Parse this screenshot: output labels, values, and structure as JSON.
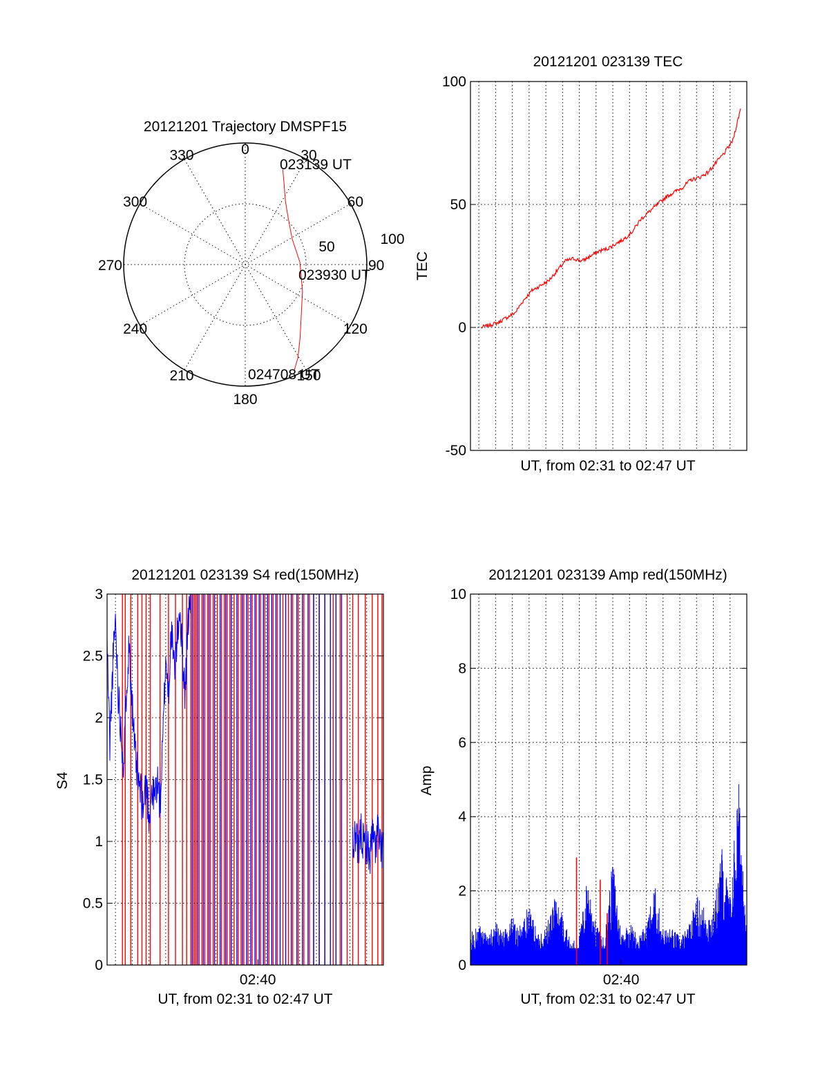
{
  "colors": {
    "red": "#ff0000",
    "blue": "#0000ff",
    "axis": "#000000"
  },
  "chart_data": [
    {
      "type": "polar",
      "title": "20121201 Trajectory DMSPF15",
      "azimuth_labels": [
        "0",
        "30",
        "60",
        "90",
        "120",
        "150",
        "180",
        "210",
        "240",
        "270",
        "300",
        "330"
      ],
      "radius_labels": [
        "50",
        "100"
      ],
      "rmax": 100,
      "trajectory": {
        "color": "#ff0000",
        "points": [
          {
            "az": 21.6,
            "zen": 84
          },
          {
            "az": 26.0,
            "zen": 73
          },
          {
            "az": 32.2,
            "zen": 62
          },
          {
            "az": 42.8,
            "zen": 52
          },
          {
            "az": 61.3,
            "zen": 44
          },
          {
            "az": 87.5,
            "zen": 45
          },
          {
            "az": 115.0,
            "zen": 52
          },
          {
            "az": 132.0,
            "zen": 62
          },
          {
            "az": 143.0,
            "zen": 75
          },
          {
            "az": 150.5,
            "zen": 88
          },
          {
            "az": 155.2,
            "zen": 96
          }
        ]
      },
      "annotations": [
        {
          "text": "023139 UT",
          "az": 21.6,
          "zen": 84
        },
        {
          "text": "023930 UT",
          "az": 87.5,
          "zen": 45
        },
        {
          "text": "024708 UT",
          "az": 155.2,
          "zen": 96
        }
      ]
    },
    {
      "type": "line",
      "title": "20121201 023139 TEC",
      "xlabel": "UT, from 02:31 to 02:47 UT",
      "ylabel": "TEC",
      "xlim": [
        "02:31:00",
        "02:47:30"
      ],
      "ylim": [
        -50,
        100
      ],
      "yticks": [
        "-50",
        "0",
        "50",
        "100"
      ],
      "xgrid": [
        "02:31:30",
        "02:32:30",
        "02:33:30",
        "02:34:30",
        "02:35:30",
        "02:36:30",
        "02:37:30",
        "02:38:30",
        "02:39:30",
        "02:40:30",
        "02:41:30",
        "02:42:30",
        "02:43:30",
        "02:44:30",
        "02:45:30",
        "02:46:30"
      ],
      "series": [
        {
          "color": "#ff0000",
          "x": [
            "02:31:39",
            "02:32:10",
            "02:32:40",
            "02:33:10",
            "02:33:40",
            "02:34:10",
            "02:34:40",
            "02:35:10",
            "02:35:40",
            "02:36:10",
            "02:36:40",
            "02:37:10",
            "02:37:40",
            "02:38:10",
            "02:38:40",
            "02:39:10",
            "02:39:40",
            "02:40:10",
            "02:40:40",
            "02:41:10",
            "02:41:40",
            "02:42:10",
            "02:42:40",
            "02:43:10",
            "02:43:40",
            "02:44:10",
            "02:44:40",
            "02:45:10",
            "02:45:40",
            "02:46:10",
            "02:46:40",
            "02:47:08"
          ],
          "values": [
            0,
            1,
            2,
            4,
            6,
            11,
            15,
            17,
            19,
            23,
            27,
            28,
            27,
            29,
            31,
            32,
            34,
            36,
            39,
            44,
            47,
            50,
            53,
            55,
            57,
            60,
            61,
            63,
            67,
            71,
            76,
            89
          ]
        }
      ]
    },
    {
      "type": "line",
      "title": "20121201 023139 S4 red(150MHz)",
      "xlabel": "UT, from 02:31 to 02:47 UT",
      "ylabel": "S4",
      "xlim": [
        "02:31:00",
        "02:47:30"
      ],
      "ylim": [
        0,
        3
      ],
      "yticks": [
        "0",
        "0.5",
        "1",
        "1.5",
        "2",
        "2.5",
        "3"
      ],
      "xticks": [
        {
          "x": "02:40:00",
          "label": "02:40"
        }
      ],
      "xgrid": [
        "02:31:30",
        "02:32:30",
        "02:33:30",
        "02:34:30",
        "02:35:30",
        "02:36:30",
        "02:37:30",
        "02:38:30",
        "02:39:30",
        "02:40:30",
        "02:41:30",
        "02:42:30",
        "02:43:30",
        "02:44:30",
        "02:45:30",
        "02:46:30"
      ],
      "series": [
        {
          "color": "#ff0000",
          "spike_x": [
            "02:31:55",
            "02:32:05",
            "02:32:25",
            "02:32:50",
            "02:33:05",
            "02:33:20",
            "02:33:35",
            "02:34:10",
            "02:34:40",
            "02:35:05",
            "02:35:30",
            "02:35:45",
            "02:36:00",
            "02:36:05",
            "02:36:10",
            "02:36:15",
            "02:36:20",
            "02:36:30",
            "02:36:40",
            "02:36:50",
            "02:37:00",
            "02:37:10",
            "02:37:20",
            "02:37:35",
            "02:37:50",
            "02:38:00",
            "02:38:10",
            "02:38:20",
            "02:38:35",
            "02:38:50",
            "02:39:00",
            "02:39:10",
            "02:39:25",
            "02:39:40",
            "02:39:55",
            "02:40:10",
            "02:40:25",
            "02:40:40",
            "02:40:55",
            "02:41:10",
            "02:41:30",
            "02:41:50",
            "02:42:05",
            "02:42:25",
            "02:42:45",
            "02:43:05",
            "02:43:20",
            "02:43:40",
            "02:44:00",
            "02:44:30",
            "02:44:55",
            "02:45:20",
            "02:45:40",
            "02:46:00",
            "02:46:25",
            "02:46:50",
            "02:47:10",
            "02:47:25"
          ]
        },
        {
          "color": "#0000ff",
          "x": [
            "02:31:00",
            "02:31:10",
            "02:31:20",
            "02:31:30",
            "02:31:40",
            "02:31:50",
            "02:32:00",
            "02:32:10",
            "02:32:20",
            "02:32:30",
            "02:32:40",
            "02:32:50",
            "02:33:00",
            "02:33:10",
            "02:33:20",
            "02:33:30",
            "02:33:40",
            "02:33:50",
            "02:34:00",
            "02:34:10",
            "02:34:20",
            "02:34:30",
            "02:34:40",
            "02:34:50",
            "02:35:00",
            "02:35:10",
            "02:35:20",
            "02:35:30",
            "02:35:40",
            "02:35:50",
            "02:36:00"
          ],
          "values": [
            2.6,
            1.8,
            2.4,
            2.8,
            2.2,
            1.9,
            1.6,
            2.3,
            2.6,
            2.1,
            1.7,
            1.5,
            1.4,
            1.25,
            1.5,
            1.2,
            1.4,
            1.35,
            1.5,
            1.3,
            1.8,
            2.5,
            2.2,
            2.7,
            2.4,
            2.6,
            2.9,
            2.5,
            2.2,
            2.8,
            3.0
          ]
        },
        {
          "color": "#0000ff",
          "spike_x": [
            "02:36:05",
            "02:36:25",
            "02:36:45",
            "02:37:05",
            "02:37:25",
            "02:37:45",
            "02:38:05",
            "02:38:25",
            "02:38:45",
            "02:39:05",
            "02:39:20",
            "02:39:35",
            "02:39:50",
            "02:40:05",
            "02:40:20",
            "02:40:35",
            "02:40:50",
            "02:41:05",
            "02:41:20",
            "02:41:40",
            "02:42:00",
            "02:42:20",
            "02:42:40",
            "02:43:00",
            "02:43:20",
            "02:43:40",
            "02:44:00",
            "02:44:20",
            "02:44:40",
            "02:45:00"
          ]
        },
        {
          "color": "#0000ff",
          "x": [
            "02:45:40",
            "02:45:50",
            "02:46:00",
            "02:46:10",
            "02:46:20",
            "02:46:30",
            "02:46:40",
            "02:46:50",
            "02:47:00",
            "02:47:10",
            "02:47:20",
            "02:47:30"
          ],
          "values": [
            0.95,
            1.05,
            0.9,
            1.1,
            0.95,
            1.0,
            0.85,
            1.05,
            0.95,
            1.1,
            0.9,
            1.0
          ]
        }
      ]
    },
    {
      "type": "line",
      "title": "20121201 023139 Amp red(150MHz)",
      "xlabel": "UT, from 02:31 to 02:47 UT",
      "ylabel": "Amp",
      "xlim": [
        "02:31:00",
        "02:47:30"
      ],
      "ylim": [
        0,
        10
      ],
      "yticks": [
        "0",
        "2",
        "4",
        "6",
        "8",
        "10"
      ],
      "xticks": [
        {
          "x": "02:40:00",
          "label": "02:40"
        }
      ],
      "xgrid": [
        "02:31:30",
        "02:32:30",
        "02:33:30",
        "02:34:30",
        "02:35:30",
        "02:36:30",
        "02:37:30",
        "02:38:30",
        "02:39:30",
        "02:40:30",
        "02:41:30",
        "02:42:30",
        "02:43:30",
        "02:44:30",
        "02:45:30",
        "02:46:30"
      ],
      "series": [
        {
          "color": "#0000ff",
          "x": [
            "02:31:00",
            "02:31:30",
            "02:32:00",
            "02:32:30",
            "02:33:00",
            "02:33:30",
            "02:34:00",
            "02:34:30",
            "02:35:00",
            "02:35:30",
            "02:36:00",
            "02:36:30",
            "02:37:00",
            "02:37:30",
            "02:38:00",
            "02:38:30",
            "02:39:00",
            "02:39:30",
            "02:40:00",
            "02:40:30",
            "02:41:00",
            "02:41:30",
            "02:42:00",
            "02:42:30",
            "02:43:00",
            "02:43:30",
            "02:44:00",
            "02:44:30",
            "02:45:00",
            "02:45:30",
            "02:46:00",
            "02:46:30",
            "02:47:00",
            "02:47:30"
          ],
          "values": [
            0.9,
            1.1,
            0.8,
            1.2,
            0.9,
            1.3,
            1.1,
            1.7,
            0.9,
            1.0,
            1.9,
            1.5,
            0.6,
            0.8,
            2.5,
            1.1,
            0.7,
            2.9,
            0.9,
            1.2,
            0.8,
            1.1,
            2.2,
            1.0,
            1.0,
            0.8,
            1.0,
            1.9,
            1.6,
            1.4,
            3.3,
            1.9,
            5.1,
            1.6
          ]
        },
        {
          "color": "#ff0000",
          "spike_x": [
            "02:37:20",
            "02:38:45",
            "02:39:10"
          ],
          "spike_y": [
            2.9,
            2.3,
            1.4
          ]
        }
      ]
    }
  ]
}
